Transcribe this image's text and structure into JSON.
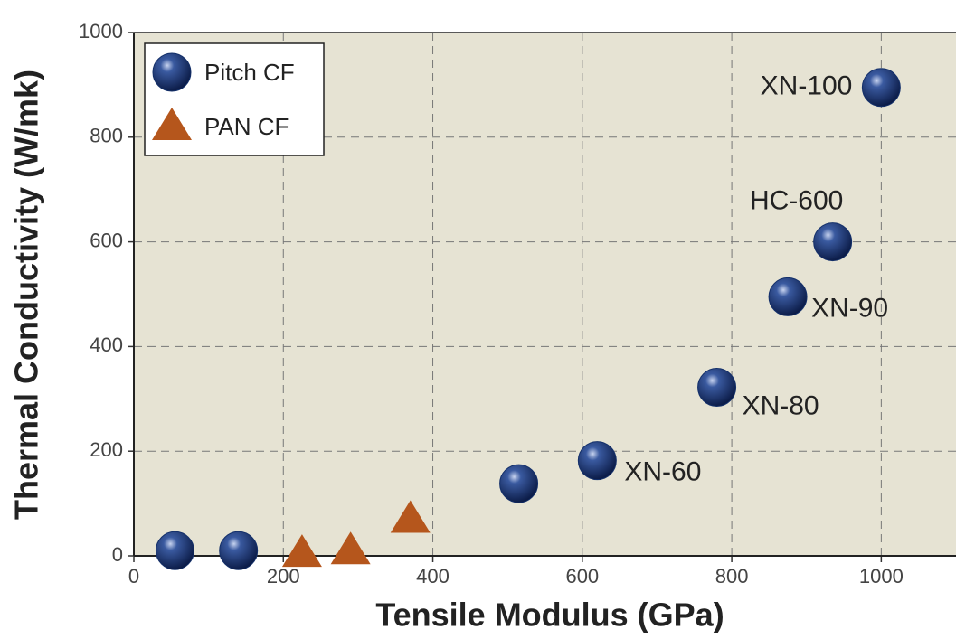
{
  "chart_data": {
    "type": "scatter",
    "xlabel": "Tensile Modulus (GPa)",
    "ylabel": "Thermal Conductivity (W/mk)",
    "xlim": [
      0,
      1100
    ],
    "xticks": [
      0,
      200,
      400,
      600,
      800,
      1000
    ],
    "ylim": [
      0,
      1000
    ],
    "yticks": [
      0,
      200,
      400,
      600,
      800,
      1000
    ],
    "grid": true,
    "legend": "upper left",
    "series": [
      {
        "name": "Pitch CF",
        "color": "#14306a",
        "marker": "circle",
        "x": [
          55,
          140,
          515,
          620,
          780,
          875,
          935,
          1000
        ],
        "values": [
          10,
          10,
          138,
          182,
          322,
          495,
          600,
          895
        ],
        "point_labels": [
          null,
          null,
          null,
          "XN-60",
          "XN-80",
          "XN-90",
          "HC-600",
          "XN-100"
        ]
      },
      {
        "name": "PAN CF",
        "color": "#b5561c",
        "marker": "triangle",
        "x": [
          225,
          290,
          370
        ],
        "values": [
          5,
          10,
          70
        ]
      }
    ]
  }
}
